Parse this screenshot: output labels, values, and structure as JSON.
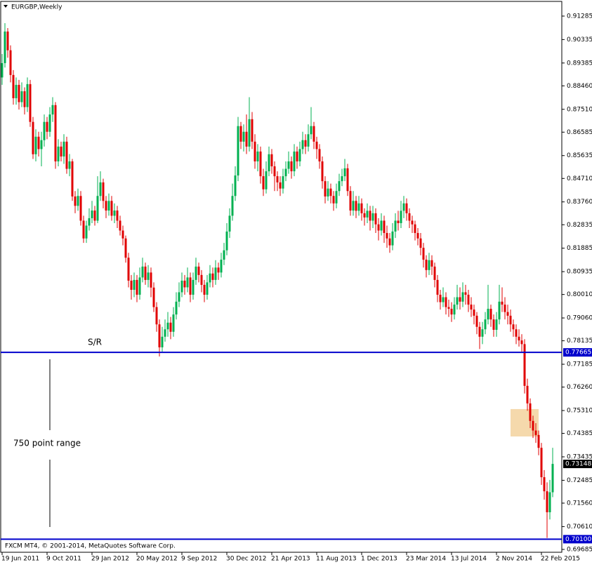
{
  "chart_data": {
    "type": "candlestick",
    "title": "EURGBP,Weekly",
    "footer": "FXCM MT4, © 2001-2014, MetaQuotes Software Corp.",
    "annotation": "750 point range",
    "bull_color": "#00b050",
    "bear_color": "#e00000",
    "ylim": [
      0.6957,
      0.9188
    ],
    "yticks": [
      0.91285,
      0.90335,
      0.89385,
      {
        "value": 0.8846,
        "label": "0.88460"
      },
      {
        "value": 0.8751,
        "label": "0.87510"
      },
      0.86585,
      0.85635,
      {
        "value": 0.8471,
        "label": "0.84710"
      },
      {
        "value": 0.8376,
        "label": "0.83760"
      },
      0.82835,
      0.81885,
      0.80935,
      {
        "value": 0.8001,
        "label": "0.80010"
      },
      {
        "value": 0.7906,
        "label": "0.79060"
      },
      0.78135,
      0.77185,
      {
        "value": 0.7626,
        "label": "0.76260"
      },
      {
        "value": 0.7531,
        "label": "0.75310"
      },
      0.74385,
      0.73435,
      0.72485,
      {
        "value": 0.7156,
        "label": "0.71560"
      },
      {
        "value": 0.7061,
        "label": "0.70610"
      },
      0.69685
    ],
    "xlim": [
      -0.5,
      199.25
    ],
    "xticks": [
      {
        "value": 0,
        "label": "19 Jun 2011"
      },
      {
        "value": 16,
        "label": "9 Oct 2011"
      },
      {
        "value": 32,
        "label": "29 Jan 2012"
      },
      {
        "value": 48,
        "label": "20 May 2012"
      },
      {
        "value": 64,
        "label": "9 Sep 2012"
      },
      {
        "value": 80,
        "label": "30 Dec 2012"
      },
      {
        "value": 96,
        "label": "21 Apr 2013"
      },
      {
        "value": 112,
        "label": "11 Aug 2013"
      },
      {
        "value": 128,
        "label": "1 Dec 2013"
      },
      {
        "value": 144,
        "label": "23 Mar 2014"
      },
      {
        "value": 160,
        "label": "13 Jul 2014"
      },
      {
        "value": 176,
        "label": "2 Nov 2014"
      },
      {
        "value": 192,
        "label": "22 Feb 2015"
      }
    ],
    "hlines": [
      {
        "value": 0.77665,
        "name": "S/R",
        "color": "#0000cc"
      },
      {
        "value": 0.701,
        "label": "0.70100",
        "color": "#0000cc"
      }
    ],
    "current_price": 0.73148,
    "zone": {
      "from": 181,
      "to": 191,
      "top": 0.7537,
      "bottom": 0.7426,
      "color": "#f5d9ac"
    },
    "candles": [
      [
        0.888,
        0.8975,
        0.885,
        0.8938
      ],
      [
        0.8938,
        0.91,
        0.892,
        0.9066
      ],
      [
        0.9066,
        0.908,
        0.896,
        0.899
      ],
      [
        0.899,
        0.901,
        0.886,
        0.889
      ],
      [
        0.889,
        0.891,
        0.877,
        0.8796
      ],
      [
        0.8796,
        0.888,
        0.877,
        0.885
      ],
      [
        0.885,
        0.887,
        0.875,
        0.878
      ],
      [
        0.878,
        0.886,
        0.876,
        0.8824
      ],
      [
        0.8824,
        0.884,
        0.873,
        0.876
      ],
      [
        0.876,
        0.888,
        0.874,
        0.8853
      ],
      [
        0.8853,
        0.887,
        0.868,
        0.87
      ],
      [
        0.87,
        0.872,
        0.855,
        0.8569
      ],
      [
        0.8569,
        0.867,
        0.854,
        0.864
      ],
      [
        0.864,
        0.866,
        0.856,
        0.859
      ],
      [
        0.859,
        0.866,
        0.852,
        0.8626
      ],
      [
        0.8626,
        0.873,
        0.86,
        0.87
      ],
      [
        0.87,
        0.872,
        0.863,
        0.866
      ],
      [
        0.866,
        0.876,
        0.864,
        0.873
      ],
      [
        0.873,
        0.88,
        0.87,
        0.8768
      ],
      [
        0.8768,
        0.878,
        0.851,
        0.854
      ],
      [
        0.854,
        0.863,
        0.852,
        0.86
      ],
      [
        0.86,
        0.862,
        0.854,
        0.856
      ],
      [
        0.856,
        0.865,
        0.853,
        0.862
      ],
      [
        0.862,
        0.864,
        0.849,
        0.851
      ],
      [
        0.851,
        0.857,
        0.848,
        0.854
      ],
      [
        0.854,
        0.855,
        0.838,
        0.8398
      ],
      [
        0.8398,
        0.842,
        0.833,
        0.836
      ],
      [
        0.836,
        0.843,
        0.834,
        0.84
      ],
      [
        0.84,
        0.842,
        0.828,
        0.83
      ],
      [
        0.83,
        0.832,
        0.821,
        0.8228
      ],
      [
        0.8228,
        0.83,
        0.821,
        0.828
      ],
      [
        0.828,
        0.835,
        0.826,
        0.831
      ],
      [
        0.831,
        0.838,
        0.829,
        0.8341
      ],
      [
        0.8341,
        0.836,
        0.828,
        0.83
      ],
      [
        0.83,
        0.848,
        0.829,
        0.84
      ],
      [
        0.84,
        0.85,
        0.838,
        0.8455
      ],
      [
        0.8455,
        0.847,
        0.835,
        0.838
      ],
      [
        0.838,
        0.84,
        0.831,
        0.8341
      ],
      [
        0.8341,
        0.841,
        0.832,
        0.838
      ],
      [
        0.838,
        0.84,
        0.83,
        0.832
      ],
      [
        0.832,
        0.837,
        0.829,
        0.8341
      ],
      [
        0.8341,
        0.836,
        0.827,
        0.83
      ],
      [
        0.83,
        0.832,
        0.824,
        0.826
      ],
      [
        0.826,
        0.828,
        0.82,
        0.8228
      ],
      [
        0.8228,
        0.824,
        0.813,
        0.815
      ],
      [
        0.815,
        0.817,
        0.803,
        0.8057
      ],
      [
        0.8057,
        0.808,
        0.798,
        0.802
      ],
      [
        0.802,
        0.809,
        0.799,
        0.806
      ],
      [
        0.806,
        0.808,
        0.797,
        0.8
      ],
      [
        0.8,
        0.811,
        0.798,
        0.807
      ],
      [
        0.807,
        0.815,
        0.805,
        0.8114
      ],
      [
        0.8114,
        0.813,
        0.804,
        0.806
      ],
      [
        0.806,
        0.812,
        0.803,
        0.809
      ],
      [
        0.809,
        0.811,
        0.799,
        0.8029
      ],
      [
        0.8029,
        0.805,
        0.793,
        0.795
      ],
      [
        0.795,
        0.797,
        0.785,
        0.788
      ],
      [
        0.788,
        0.79,
        0.775,
        0.7787
      ],
      [
        0.7787,
        0.787,
        0.777,
        0.783
      ],
      [
        0.783,
        0.79,
        0.781,
        0.786
      ],
      [
        0.786,
        0.793,
        0.783,
        0.7887
      ],
      [
        0.7887,
        0.791,
        0.782,
        0.785
      ],
      [
        0.785,
        0.795,
        0.783,
        0.792
      ],
      [
        0.792,
        0.801,
        0.79,
        0.7972
      ],
      [
        0.7972,
        0.805,
        0.795,
        0.801
      ],
      [
        0.801,
        0.809,
        0.799,
        0.8057
      ],
      [
        0.8057,
        0.808,
        0.8,
        0.803
      ],
      [
        0.803,
        0.811,
        0.801,
        0.807
      ],
      [
        0.807,
        0.809,
        0.797,
        0.8
      ],
      [
        0.8,
        0.809,
        0.798,
        0.806
      ],
      [
        0.806,
        0.815,
        0.804,
        0.8114
      ],
      [
        0.8114,
        0.813,
        0.805,
        0.808
      ],
      [
        0.808,
        0.81,
        0.801,
        0.804
      ],
      [
        0.804,
        0.806,
        0.797,
        0.8
      ],
      [
        0.8,
        0.808,
        0.798,
        0.805
      ],
      [
        0.805,
        0.812,
        0.803,
        0.8086
      ],
      [
        0.8086,
        0.811,
        0.803,
        0.806
      ],
      [
        0.806,
        0.814,
        0.804,
        0.811
      ],
      [
        0.811,
        0.813,
        0.806,
        0.809
      ],
      [
        0.809,
        0.817,
        0.807,
        0.8142
      ],
      [
        0.8142,
        0.821,
        0.812,
        0.818
      ],
      [
        0.818,
        0.829,
        0.816,
        0.8256
      ],
      [
        0.8256,
        0.835,
        0.823,
        0.832
      ],
      [
        0.832,
        0.845,
        0.83,
        0.84
      ],
      [
        0.84,
        0.852,
        0.838,
        0.8483
      ],
      [
        0.8483,
        0.872,
        0.846,
        0.8683
      ],
      [
        0.8683,
        0.87,
        0.859,
        0.862
      ],
      [
        0.862,
        0.869,
        0.858,
        0.866
      ],
      [
        0.866,
        0.873,
        0.857,
        0.86
      ],
      [
        0.86,
        0.88,
        0.858,
        0.8711
      ],
      [
        0.8711,
        0.874,
        0.859,
        0.862
      ],
      [
        0.862,
        0.865,
        0.851,
        0.854
      ],
      [
        0.854,
        0.861,
        0.85,
        0.858
      ],
      [
        0.858,
        0.86,
        0.845,
        0.848
      ],
      [
        0.848,
        0.851,
        0.84,
        0.8427
      ],
      [
        0.8427,
        0.854,
        0.841,
        0.85
      ],
      [
        0.85,
        0.86,
        0.848,
        0.8569
      ],
      [
        0.8569,
        0.859,
        0.849,
        0.852
      ],
      [
        0.852,
        0.854,
        0.842,
        0.848
      ],
      [
        0.848,
        0.85,
        0.842,
        0.8455
      ],
      [
        0.8455,
        0.848,
        0.84,
        0.843
      ],
      [
        0.843,
        0.851,
        0.841,
        0.848
      ],
      [
        0.848,
        0.854,
        0.846,
        0.851
      ],
      [
        0.851,
        0.858,
        0.849,
        0.854
      ],
      [
        0.854,
        0.856,
        0.847,
        0.85
      ],
      [
        0.85,
        0.861,
        0.848,
        0.858
      ],
      [
        0.858,
        0.86,
        0.851,
        0.854
      ],
      [
        0.854,
        0.862,
        0.852,
        0.859
      ],
      [
        0.859,
        0.866,
        0.857,
        0.8626
      ],
      [
        0.8626,
        0.865,
        0.857,
        0.86
      ],
      [
        0.86,
        0.869,
        0.858,
        0.865
      ],
      [
        0.865,
        0.876,
        0.863,
        0.8683
      ],
      [
        0.8683,
        0.87,
        0.859,
        0.862
      ],
      [
        0.862,
        0.864,
        0.855,
        0.859
      ],
      [
        0.859,
        0.861,
        0.851,
        0.854
      ],
      [
        0.854,
        0.856,
        0.843,
        0.846
      ],
      [
        0.846,
        0.848,
        0.837,
        0.8398
      ],
      [
        0.8398,
        0.846,
        0.838,
        0.843
      ],
      [
        0.843,
        0.845,
        0.837,
        0.84
      ],
      [
        0.84,
        0.842,
        0.834,
        0.837
      ],
      [
        0.837,
        0.845,
        0.835,
        0.842
      ],
      [
        0.842,
        0.849,
        0.84,
        0.846
      ],
      [
        0.846,
        0.851,
        0.844,
        0.848
      ],
      [
        0.848,
        0.855,
        0.846,
        0.8512
      ],
      [
        0.8512,
        0.853,
        0.84,
        0.842
      ],
      [
        0.842,
        0.844,
        0.832,
        0.8341
      ],
      [
        0.8341,
        0.842,
        0.832,
        0.838
      ],
      [
        0.838,
        0.84,
        0.831,
        0.834
      ],
      [
        0.834,
        0.84,
        0.832,
        0.837
      ],
      [
        0.837,
        0.839,
        0.83,
        0.833
      ],
      [
        0.833,
        0.835,
        0.828,
        0.8313
      ],
      [
        0.8313,
        0.837,
        0.829,
        0.834
      ],
      [
        0.834,
        0.836,
        0.826,
        0.83
      ],
      [
        0.83,
        0.836,
        0.827,
        0.833
      ],
      [
        0.833,
        0.835,
        0.825,
        0.8285
      ],
      [
        0.8285,
        0.831,
        0.822,
        0.826
      ],
      [
        0.826,
        0.833,
        0.824,
        0.83
      ],
      [
        0.83,
        0.832,
        0.821,
        0.825
      ],
      [
        0.825,
        0.828,
        0.819,
        0.8228
      ],
      [
        0.8228,
        0.825,
        0.817,
        0.82
      ],
      [
        0.82,
        0.829,
        0.818,
        0.8256
      ],
      [
        0.8256,
        0.833,
        0.823,
        0.83
      ],
      [
        0.83,
        0.834,
        0.826,
        0.829
      ],
      [
        0.829,
        0.838,
        0.827,
        0.834
      ],
      [
        0.834,
        0.84,
        0.831,
        0.837
      ],
      [
        0.837,
        0.839,
        0.83,
        0.833
      ],
      [
        0.833,
        0.835,
        0.827,
        0.83
      ],
      [
        0.83,
        0.832,
        0.825,
        0.8285
      ],
      [
        0.8285,
        0.83,
        0.822,
        0.825
      ],
      [
        0.825,
        0.827,
        0.82,
        0.8228
      ],
      [
        0.8228,
        0.825,
        0.816,
        0.819
      ],
      [
        0.819,
        0.821,
        0.811,
        0.8142
      ],
      [
        0.8142,
        0.816,
        0.807,
        0.81
      ],
      [
        0.81,
        0.817,
        0.808,
        0.814
      ],
      [
        0.814,
        0.816,
        0.808,
        0.8114
      ],
      [
        0.8114,
        0.813,
        0.803,
        0.806
      ],
      [
        0.806,
        0.808,
        0.797,
        0.8
      ],
      [
        0.8,
        0.802,
        0.794,
        0.797
      ],
      [
        0.797,
        0.803,
        0.795,
        0.799
      ],
      [
        0.799,
        0.801,
        0.792,
        0.795
      ],
      [
        0.795,
        0.798,
        0.791,
        0.7943
      ],
      [
        0.7943,
        0.797,
        0.789,
        0.792
      ],
      [
        0.792,
        0.799,
        0.79,
        0.796
      ],
      [
        0.796,
        0.804,
        0.794,
        0.799
      ],
      [
        0.799,
        0.803,
        0.794,
        0.7972
      ],
      [
        0.7972,
        0.805,
        0.795,
        0.801
      ],
      [
        0.801,
        0.804,
        0.796,
        0.8
      ],
      [
        0.8,
        0.802,
        0.793,
        0.796
      ],
      [
        0.796,
        0.799,
        0.791,
        0.794
      ],
      [
        0.794,
        0.796,
        0.788,
        0.7915
      ],
      [
        0.7915,
        0.793,
        0.784,
        0.787
      ],
      [
        0.787,
        0.789,
        0.778,
        0.783
      ],
      [
        0.783,
        0.789,
        0.78,
        0.786
      ],
      [
        0.786,
        0.793,
        0.784,
        0.79
      ],
      [
        0.79,
        0.804,
        0.788,
        0.7943
      ],
      [
        0.7943,
        0.796,
        0.787,
        0.79
      ],
      [
        0.79,
        0.792,
        0.783,
        0.7858
      ],
      [
        0.7858,
        0.793,
        0.783,
        0.79
      ],
      [
        0.79,
        0.804,
        0.788,
        0.7972
      ],
      [
        0.7972,
        0.803,
        0.793,
        0.796
      ],
      [
        0.796,
        0.799,
        0.79,
        0.793
      ],
      [
        0.793,
        0.796,
        0.788,
        0.7915
      ],
      [
        0.7915,
        0.794,
        0.785,
        0.788
      ],
      [
        0.788,
        0.79,
        0.783,
        0.786
      ],
      [
        0.786,
        0.788,
        0.78,
        0.783
      ],
      [
        0.783,
        0.786,
        0.779,
        0.7815
      ],
      [
        0.7815,
        0.784,
        0.777,
        0.78
      ],
      [
        0.78,
        0.782,
        0.76,
        0.7631
      ],
      [
        0.7631,
        0.766,
        0.753,
        0.756
      ],
      [
        0.756,
        0.758,
        0.746,
        0.7489
      ],
      [
        0.7489,
        0.751,
        0.742,
        0.745
      ],
      [
        0.745,
        0.748,
        0.74,
        0.7432
      ],
      [
        0.7432,
        0.745,
        0.735,
        0.738
      ],
      [
        0.738,
        0.74,
        0.723,
        0.7261
      ],
      [
        0.7261,
        0.729,
        0.717,
        0.7204
      ],
      [
        0.7204,
        0.724,
        0.7015,
        0.7119
      ],
      [
        0.7119,
        0.725,
        0.709,
        0.72
      ],
      [
        0.72,
        0.738,
        0.718,
        0.73148
      ]
    ]
  }
}
